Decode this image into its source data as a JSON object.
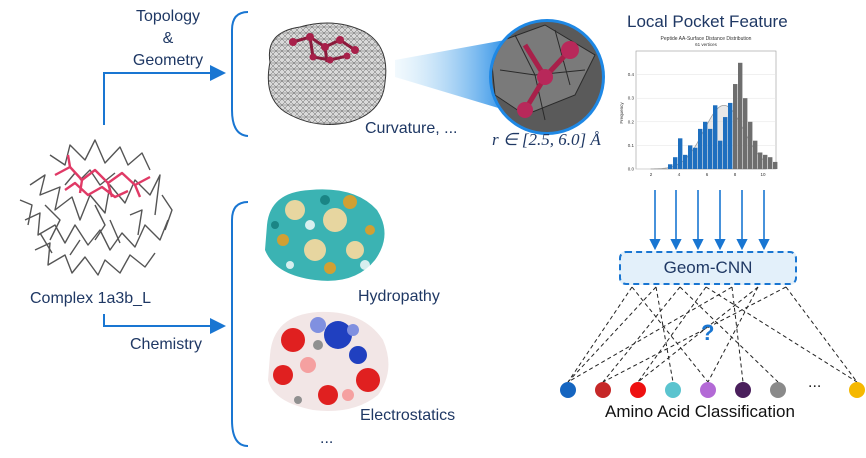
{
  "labels": {
    "topology": "Topology",
    "amp": "&",
    "geometry": "Geometry",
    "chemistry": "Chemistry",
    "complex": "Complex 1a3b_L",
    "curvature": "Curvature, ...",
    "radius": "r ∈ [2.5, 6.0] Å",
    "local_pocket": "Local Pocket Feature",
    "hydropathy": "Hydropathy",
    "electrostatics": "Electrostatics",
    "more": "...",
    "geomcnn": "Geom-CNN",
    "question": "?",
    "aa_ellipsis": "...",
    "aa_classification": "Amino Acid Classification"
  },
  "histogram": {
    "title": "Peptide AA-Surface Distance Distribution",
    "subtitle": "61 vertices",
    "ylabel": "Frequency",
    "xticks": [
      "2",
      "4",
      "6",
      "8",
      "10"
    ],
    "yticks": [
      "0.0",
      "0.1",
      "0.2",
      "0.3",
      "0.4"
    ],
    "bars_blue": [
      0.02,
      0.05,
      0.13,
      0.06,
      0.1,
      0.09,
      0.17,
      0.2,
      0.17,
      0.27,
      0.12,
      0.22,
      0.28
    ],
    "bars_gray": [
      0.36,
      0.45,
      0.3,
      0.2,
      0.12,
      0.07,
      0.06,
      0.05,
      0.03
    ]
  },
  "amino_acid_colors": [
    "#1565c0",
    "#c62828",
    "#ee1111",
    "#5bc4cf",
    "#b36ad6",
    "#4a1f5c",
    "#8a8a8a",
    "#f5b800"
  ],
  "colors": {
    "arrow": "#1976d2",
    "text": "#1f3864",
    "ligand": "#b22a52",
    "box_fill": "#e3f0fa"
  }
}
